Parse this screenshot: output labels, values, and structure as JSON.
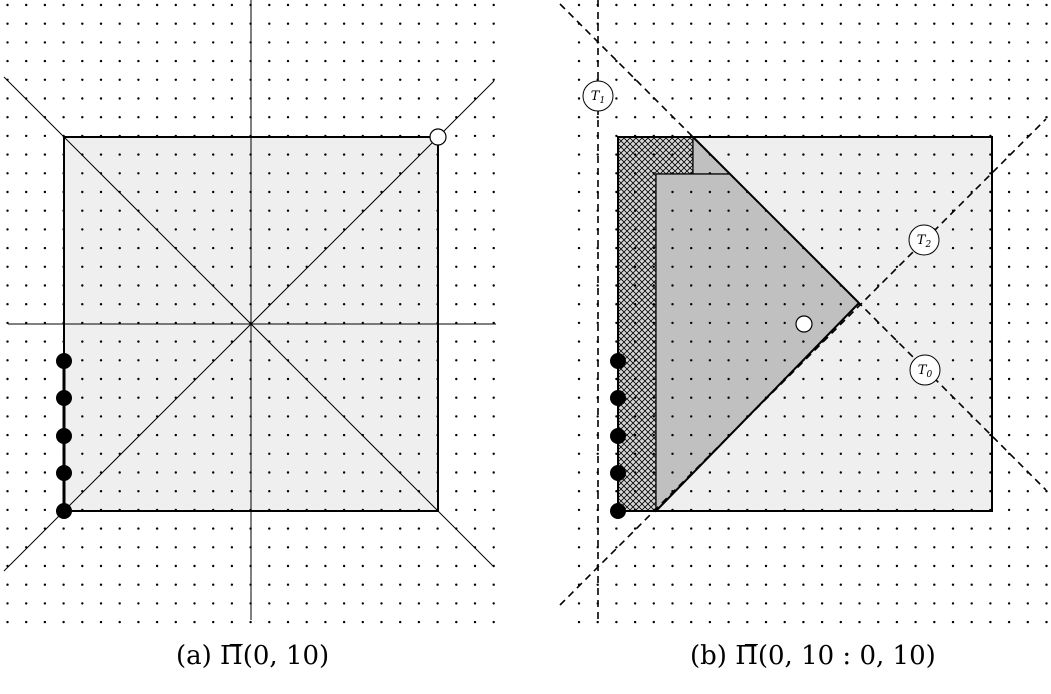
{
  "captions": {
    "a": "(a) Π̅(0, 10)",
    "b": "(b) Π̅(0, 10 : 0, 10)"
  },
  "panel_b_labels": {
    "t1": {
      "main": "T",
      "sub": "1"
    },
    "t2": {
      "main": "T",
      "sub": "2"
    },
    "t0": {
      "main": "T",
      "sub": "0"
    }
  },
  "colors": {
    "light_fill": "#efefef",
    "mid_fill": "#c0c0c0",
    "hatch_fill": "#cfcfcf",
    "stroke": "#000000",
    "dot": "#000000"
  }
}
